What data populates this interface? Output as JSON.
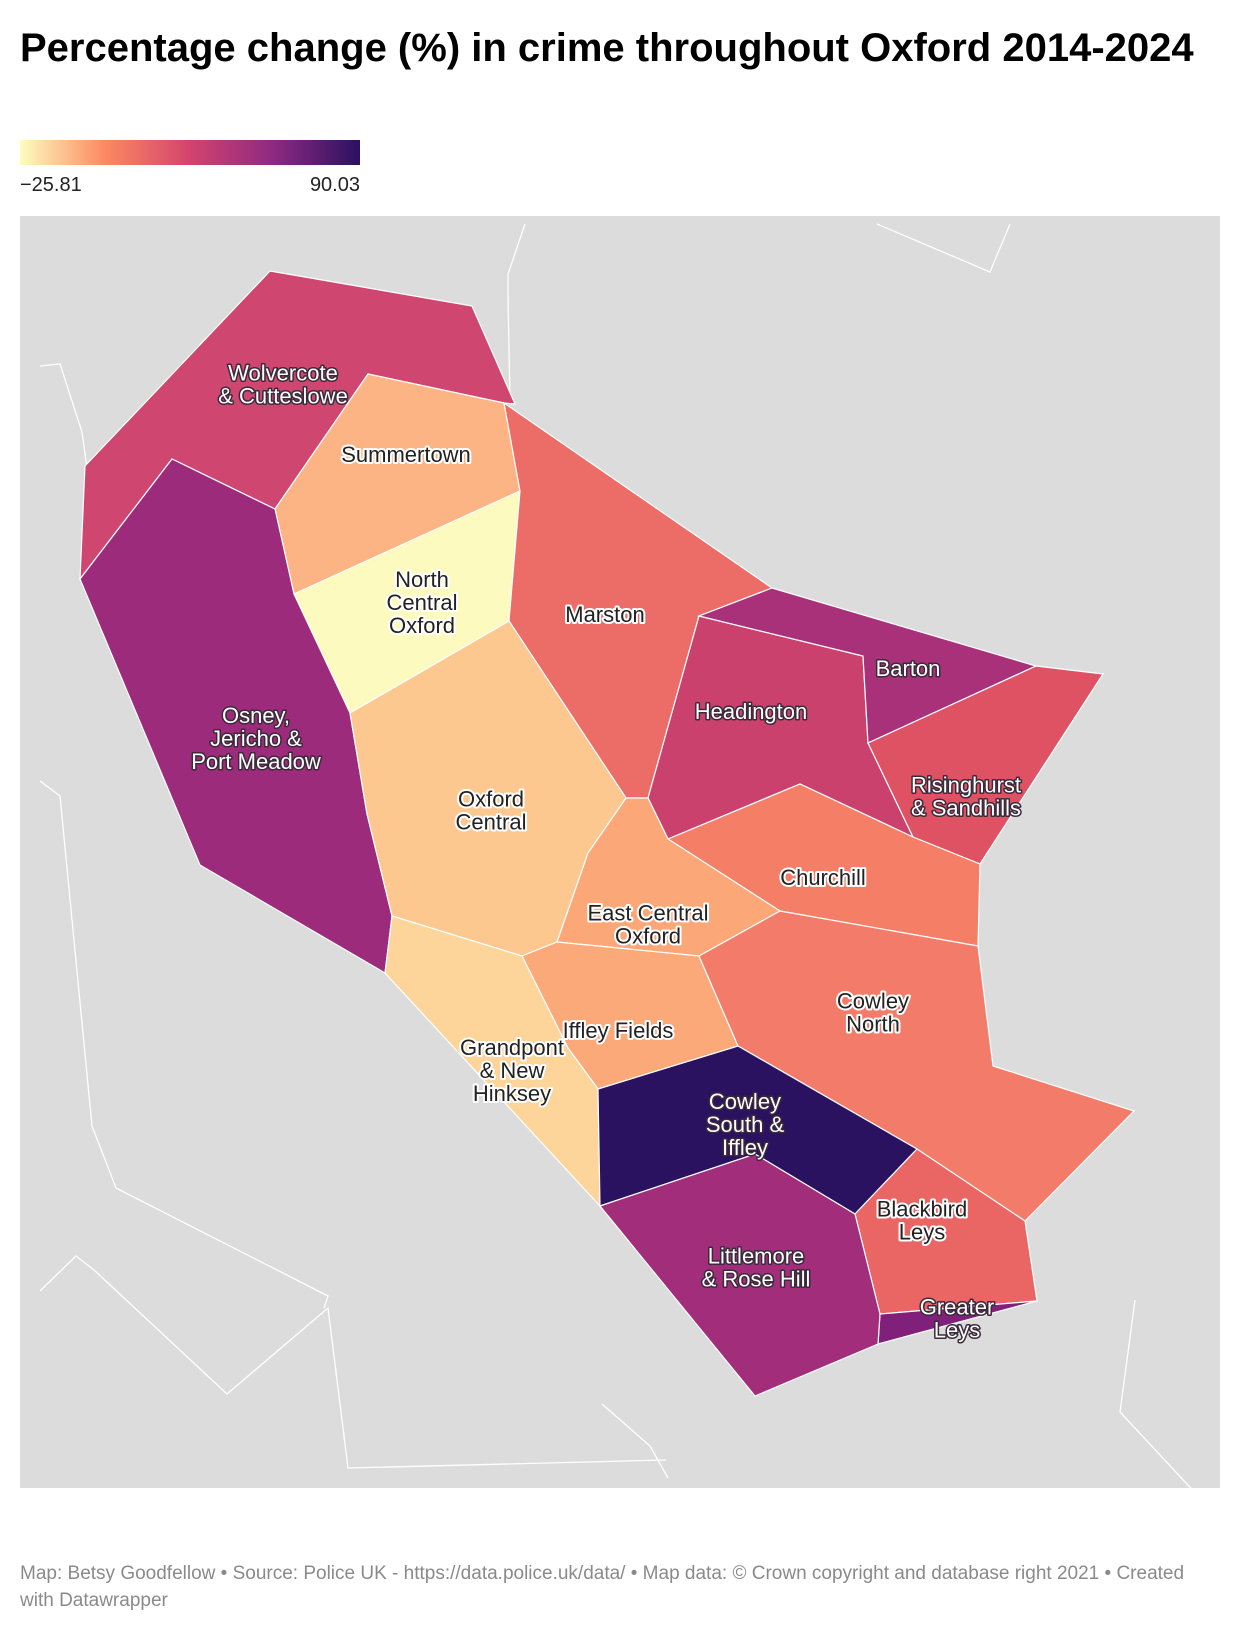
{
  "title": "Percentage change (%) in crime throughout Oxford 2014-2024",
  "legend": {
    "min_label": "−25.81",
    "max_label": "90.03",
    "min_value": -25.81,
    "max_value": 90.03,
    "gradient_colors": [
      "#fcfdbf",
      "#fc8961",
      "#d3436e",
      "#8c2981",
      "#2b1160"
    ]
  },
  "colors": {
    "background_land": "#dcdcdc",
    "boundary_lines": "#ffffff"
  },
  "regions": [
    {
      "id": "wolvercote",
      "lines": [
        "Wolvercote",
        "& Cutteslowe"
      ],
      "color": "#cf4670",
      "dark_text": true
    },
    {
      "id": "summertown",
      "lines": [
        "Summertown"
      ],
      "color": "#fcb484",
      "dark_text": false
    },
    {
      "id": "north-central",
      "lines": [
        "North",
        "Central",
        "Oxford"
      ],
      "color": "#fcfabf",
      "dark_text": false
    },
    {
      "id": "marston",
      "lines": [
        "Marston"
      ],
      "color": "#ec6c68",
      "dark_text": false
    },
    {
      "id": "osney",
      "lines": [
        "Osney,",
        "Jericho &",
        "Port Meadow"
      ],
      "color": "#9d2b7b",
      "dark_text": true
    },
    {
      "id": "oxford-central",
      "lines": [
        "Oxford",
        "Central"
      ],
      "color": "#fdc790",
      "dark_text": false
    },
    {
      "id": "headington",
      "lines": [
        "Headington"
      ],
      "color": "#cb416e",
      "dark_text": true
    },
    {
      "id": "barton",
      "lines": [
        "Barton"
      ],
      "color": "#a8317a",
      "dark_text": true
    },
    {
      "id": "risinghurst",
      "lines": [
        "Risinghurst",
        "& Sandhills"
      ],
      "color": "#df5264",
      "dark_text": true
    },
    {
      "id": "churchill",
      "lines": [
        "Churchill"
      ],
      "color": "#f47f66",
      "dark_text": false
    },
    {
      "id": "east-central",
      "lines": [
        "East Central",
        "Oxford"
      ],
      "color": "#fca777",
      "dark_text": false
    },
    {
      "id": "iffley-fields",
      "lines": [
        "Iffley Fields"
      ],
      "color": "#fca97a",
      "dark_text": false
    },
    {
      "id": "grandpont",
      "lines": [
        "Grandpont",
        "& New",
        "Hinksey"
      ],
      "color": "#fdd49a",
      "dark_text": false
    },
    {
      "id": "cowley-north",
      "lines": [
        "Cowley",
        "North"
      ],
      "color": "#f27c69",
      "dark_text": false
    },
    {
      "id": "cowley-south",
      "lines": [
        "Cowley",
        "South &",
        "Iffley"
      ],
      "color": "#2b1260",
      "dark_text": true
    },
    {
      "id": "blackbird-leys",
      "lines": [
        "Blackbird",
        "Leys"
      ],
      "color": "#ea6664",
      "dark_text": false
    },
    {
      "id": "greater-leys",
      "lines": [
        "Greater",
        "Leys"
      ],
      "color": "#80207b",
      "dark_text": true
    },
    {
      "id": "littlemore",
      "lines": [
        "Littlemore",
        "& Rose Hill"
      ],
      "color": "#a22e7b",
      "dark_text": true
    }
  ],
  "footer": {
    "credit": "Map: Betsy Goodfellow",
    "source": "• Source: Police UK - https://data.police.uk/data/",
    "map_data": "• Map data: © Crown copyright and database right 2021",
    "created": "• Created with Datawrapper"
  }
}
